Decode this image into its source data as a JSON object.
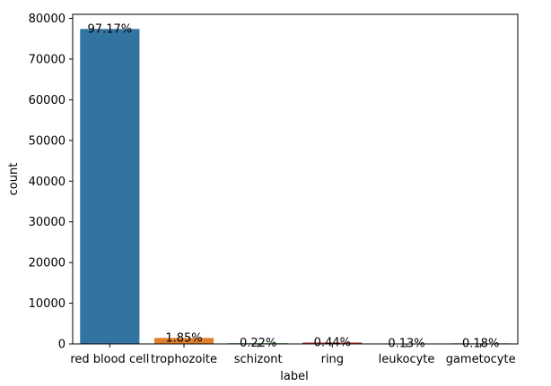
{
  "chart_data": {
    "type": "bar",
    "xlabel": "label",
    "ylabel": "count",
    "ylim": [
      0,
      81000
    ],
    "yticks": [
      0,
      10000,
      20000,
      30000,
      40000,
      50000,
      60000,
      70000,
      80000
    ],
    "ytick_labels": [
      "0",
      "10000",
      "20000",
      "30000",
      "40000",
      "50000",
      "60000",
      "70000",
      "80000"
    ],
    "categories": [
      "red blood cell",
      "trophozoite",
      "schizont",
      "ring",
      "leukocyte",
      "gametocyte"
    ],
    "values": [
      77400,
      1475,
      175,
      350,
      105,
      145
    ],
    "data_labels": [
      "97.17%",
      "1.85%",
      "0.22%",
      "0.44%",
      "0.13%",
      "0.18%"
    ],
    "colors": [
      "#3274a1",
      "#e1812c",
      "#3a923a",
      "#c03d3e",
      "#9372b2",
      "#845b53"
    ],
    "grid": false,
    "legend": "none"
  }
}
